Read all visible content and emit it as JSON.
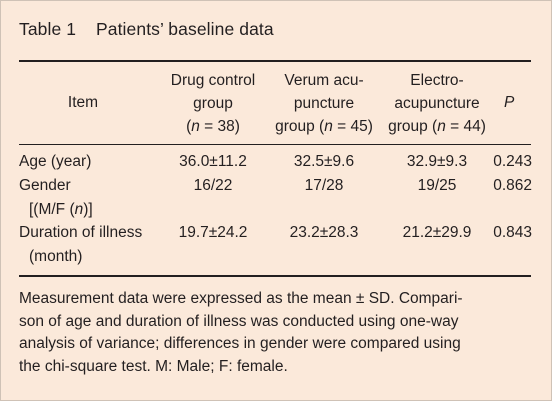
{
  "title": "Table 1    Patients’ baseline data",
  "header": {
    "item": "Item",
    "drug_control": [
      "Drug control",
      "group",
      "(n = 38)"
    ],
    "verum": [
      "Verum acu-",
      "puncture",
      "group (n = 45)"
    ],
    "electro": [
      "Electro-",
      "acupuncture",
      "group (n = 44)"
    ],
    "p": "P"
  },
  "rows": [
    {
      "item": [
        "Age (year)"
      ],
      "drug_control": "36.0±11.2",
      "verum": "32.5±9.6",
      "electro": "32.9±9.3",
      "p": "0.243"
    },
    {
      "item": [
        "Gender",
        "[(M/F (n)]"
      ],
      "drug_control": "16/22",
      "verum": "17/28",
      "electro": "19/25",
      "p": "0.862"
    },
    {
      "item": [
        "Duration of illness",
        "(month)"
      ],
      "drug_control": "19.7±24.2",
      "verum": "23.2±28.3",
      "electro": "21.2±29.9",
      "p": "0.843"
    }
  ],
  "note": [
    "Measurement data were expressed as the mean ± SD. Compari-",
    "son of age and duration of illness was conducted using one-way",
    "analysis of variance; differences in gender were compared using",
    "the chi-square test. M: Male; F: female."
  ]
}
